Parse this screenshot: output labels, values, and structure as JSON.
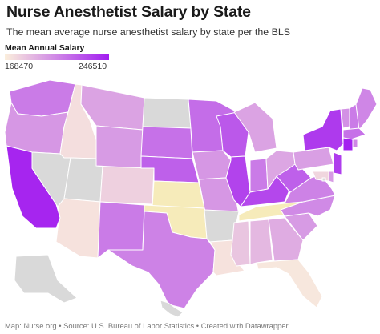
{
  "header": {
    "title": "Nurse Anesthetist Salary by State",
    "subtitle": "The mean average nurse anesthetist salary by state per the BLS"
  },
  "legend": {
    "title": "Mean Annual Salary",
    "min_label": "168470",
    "max_label": "246510",
    "min": 168470,
    "max": 246510,
    "color_low": "#fbefdc",
    "color_high": "#a21df0"
  },
  "colors": {
    "no_data": "#d9d9d9",
    "border": "#ffffff"
  },
  "states": [
    {
      "id": "WA",
      "value": 0.55
    },
    {
      "id": "OR",
      "value": 0.42
    },
    {
      "id": "CA",
      "value": 0.96
    },
    {
      "id": "ID",
      "value": 0.08
    },
    {
      "id": "NV",
      "value": null
    },
    {
      "id": "UT",
      "value": null
    },
    {
      "id": "AZ",
      "value": 0.06
    },
    {
      "id": "MT",
      "value": 0.36
    },
    {
      "id": "WY",
      "value": 0.4
    },
    {
      "id": "CO",
      "value": 0.15
    },
    {
      "id": "NM",
      "value": 0.55
    },
    {
      "id": "ND",
      "value": null
    },
    {
      "id": "SD",
      "value": 0.6
    },
    {
      "id": "NE",
      "value": 0.68
    },
    {
      "id": "KS",
      "value": "#f6ebba"
    },
    {
      "id": "OK",
      "value": "#f6ebba"
    },
    {
      "id": "TX",
      "value": 0.52
    },
    {
      "id": "MN",
      "value": 0.62
    },
    {
      "id": "IA",
      "value": 0.42
    },
    {
      "id": "MO",
      "value": 0.42
    },
    {
      "id": "AR",
      "value": null
    },
    {
      "id": "LA",
      "value": 0.06
    },
    {
      "id": "WI",
      "value": 0.72
    },
    {
      "id": "IL",
      "value": 0.82
    },
    {
      "id": "MI",
      "value": 0.36
    },
    {
      "id": "IN",
      "value": 0.55
    },
    {
      "id": "KY",
      "value": 0.8
    },
    {
      "id": "TN",
      "value": "#f6ebba"
    },
    {
      "id": "MS",
      "value": 0.2
    },
    {
      "id": "AL",
      "value": 0.26
    },
    {
      "id": "GA",
      "value": 0.32
    },
    {
      "id": "FL",
      "value": 0.04
    },
    {
      "id": "SC",
      "value": 0.4
    },
    {
      "id": "NC",
      "value": 0.48
    },
    {
      "id": "VA",
      "value": 0.52
    },
    {
      "id": "WV",
      "value": 0.68
    },
    {
      "id": "OH",
      "value": 0.35
    },
    {
      "id": "PA",
      "value": 0.38
    },
    {
      "id": "NY",
      "value": 0.86
    },
    {
      "id": "VT",
      "value": 0.45
    },
    {
      "id": "NH",
      "value": 0.55
    },
    {
      "id": "ME",
      "value": 0.5
    },
    {
      "id": "MA",
      "value": 0.6
    },
    {
      "id": "CT",
      "value": 0.98
    },
    {
      "id": "RI",
      "value": 0.5
    },
    {
      "id": "NJ",
      "value": 0.85
    },
    {
      "id": "DE",
      "value": 0.4
    },
    {
      "id": "MD",
      "value": 0.12
    },
    {
      "id": "DC",
      "value": null
    },
    {
      "id": "AK",
      "value": null
    },
    {
      "id": "HI",
      "value": null
    }
  ],
  "footer": {
    "text": "Map: Nurse.org • Source: U.S. Bureau of Labor Statistics • Created with Datawrapper"
  }
}
